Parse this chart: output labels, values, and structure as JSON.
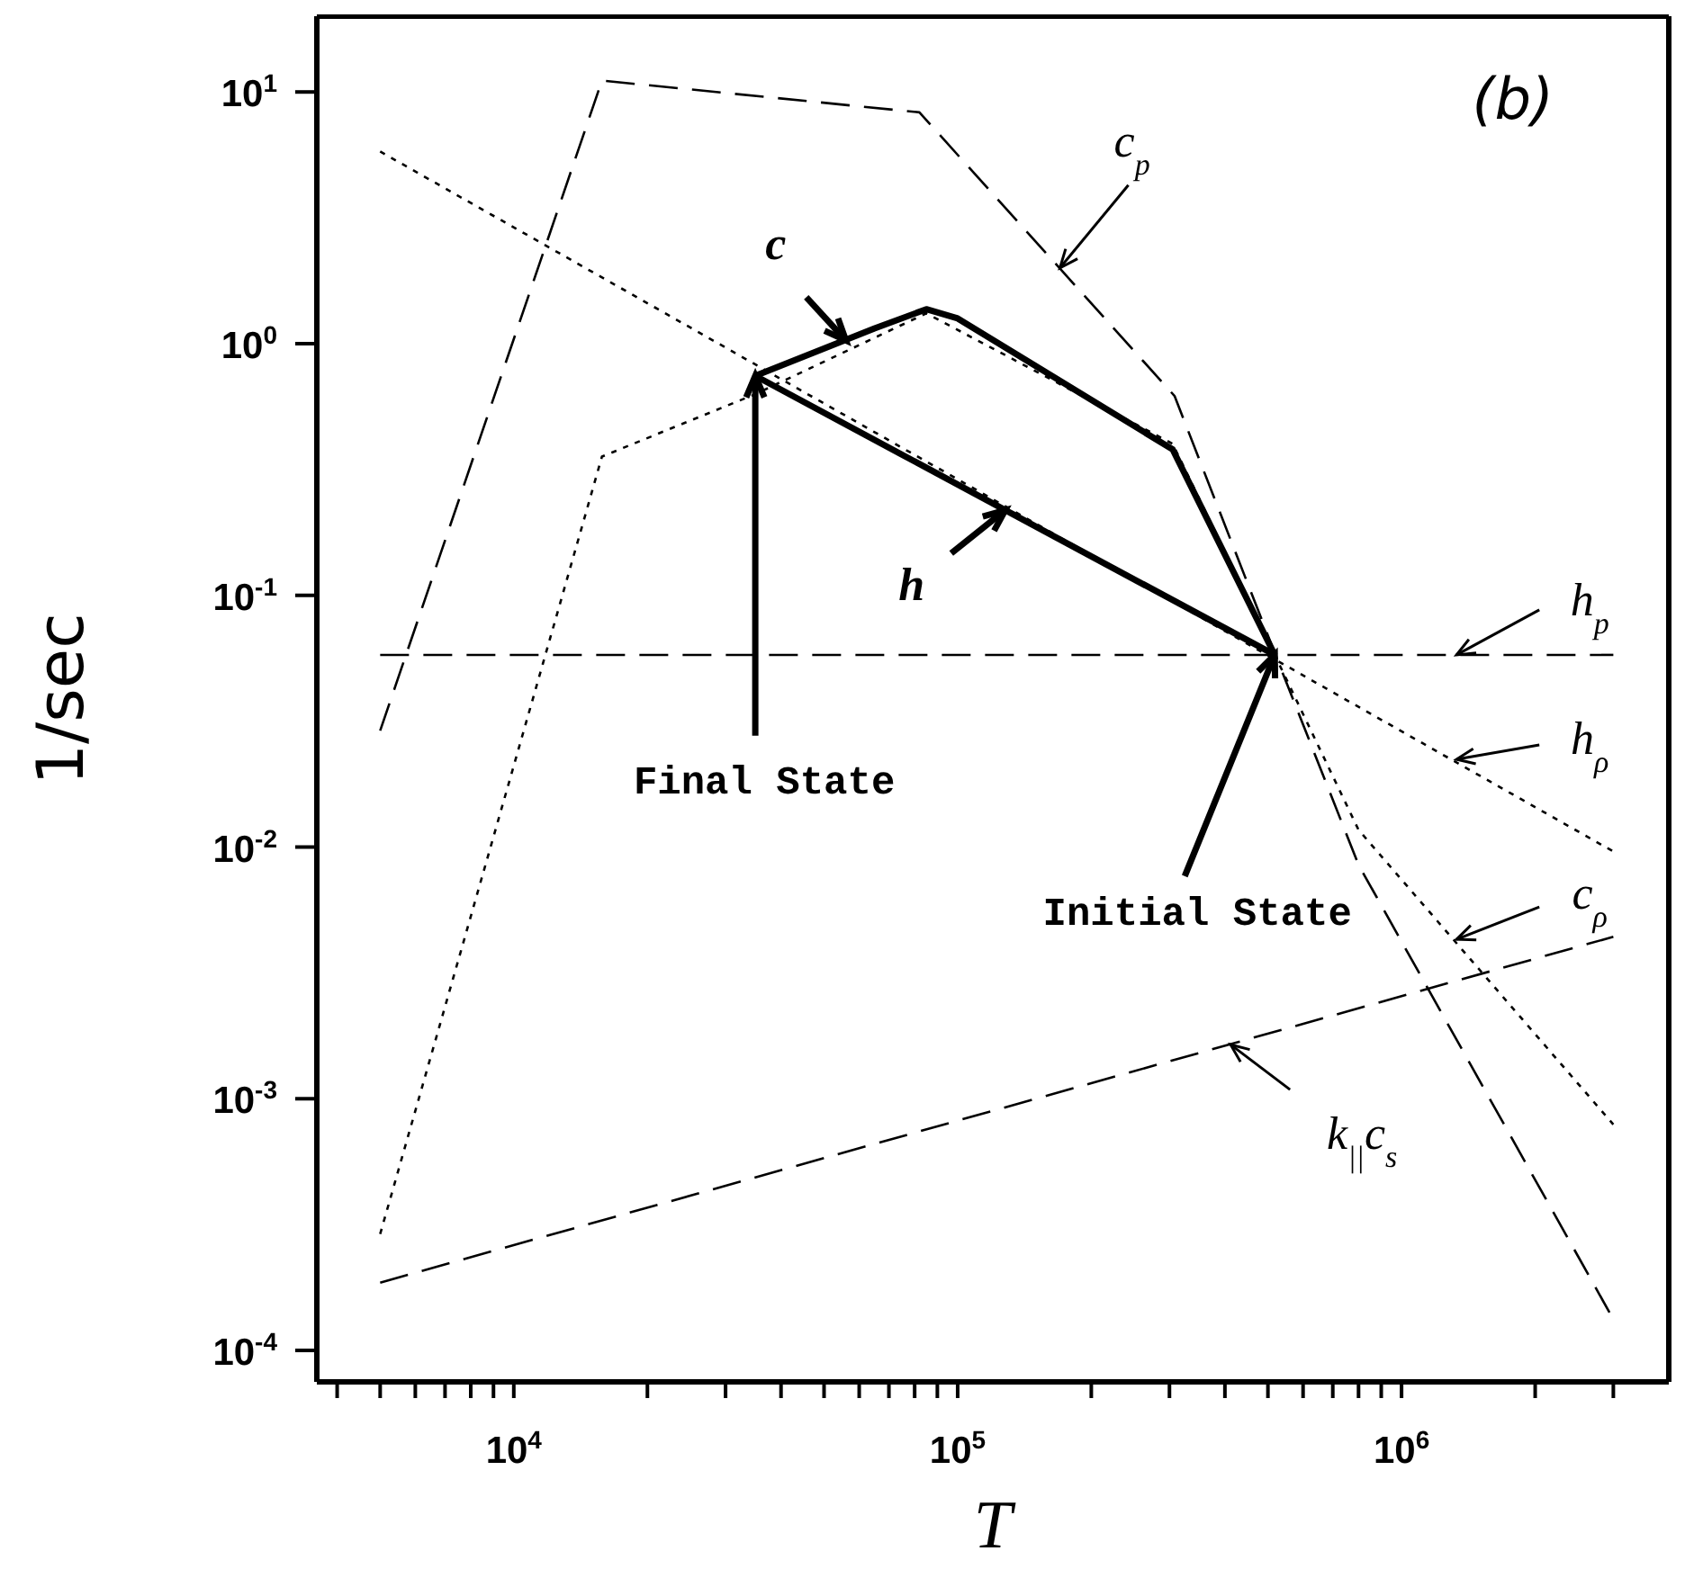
{
  "chart_data": {
    "type": "line",
    "xlabel": "T",
    "ylabel": "1/sec",
    "log": "xy",
    "grid": false,
    "marker": "none",
    "xlim": [
      3600,
      4000000
    ],
    "ylim": [
      7.5e-05,
      20
    ],
    "xticks": [
      {
        "value": 4000,
        "label": null
      },
      {
        "value": 5000,
        "label": null
      },
      {
        "value": 6000,
        "label": null
      },
      {
        "value": 7000,
        "label": null
      },
      {
        "value": 8000,
        "label": null
      },
      {
        "value": 9000,
        "label": null
      },
      {
        "value": 10000,
        "label": "10$^{4}$"
      },
      {
        "value": 20000,
        "label": null
      },
      {
        "value": 30000,
        "label": null
      },
      {
        "value": 40000,
        "label": null
      },
      {
        "value": 50000,
        "label": null
      },
      {
        "value": 60000,
        "label": null
      },
      {
        "value": 70000,
        "label": null
      },
      {
        "value": 80000,
        "label": null
      },
      {
        "value": 90000,
        "label": null
      },
      {
        "value": 100000,
        "label": "10$^{5}$"
      },
      {
        "value": 200000,
        "label": null
      },
      {
        "value": 300000,
        "label": null
      },
      {
        "value": 400000,
        "label": null
      },
      {
        "value": 500000,
        "label": null
      },
      {
        "value": 600000,
        "label": null
      },
      {
        "value": 700000,
        "label": null
      },
      {
        "value": 800000,
        "label": null
      },
      {
        "value": 900000,
        "label": null
      },
      {
        "value": 1000000,
        "label": "10$^{6}$"
      },
      {
        "value": 2000000,
        "label": null
      },
      {
        "value": 3000000,
        "label": null
      }
    ],
    "yticks": [
      {
        "value": 0.0001,
        "label": "10$^{-4}$"
      },
      {
        "value": 0.001,
        "label": "10$^{-3}$"
      },
      {
        "value": 0.01,
        "label": "10$^{-2}$"
      },
      {
        "value": 0.1,
        "label": "10$^{-1}$"
      },
      {
        "value": 1,
        "label": "10$^{0}$"
      },
      {
        "value": 10,
        "label": "10$^{1}$"
      }
    ],
    "series": [
      {
        "color": "#000000",
        "line_style": "dashed",
        "x": [
          5000,
          15800,
          82000,
          308000,
          520000,
          800000,
          3000000
        ],
        "values": [
          0.029,
          11.1,
          8.3,
          0.62,
          0.058,
          0.0085,
          0.000133
        ]
      },
      {
        "color": "#000000",
        "line_style": "dashed",
        "x": [
          5000,
          3000000
        ],
        "values": [
          0.058,
          0.058
        ]
      },
      {
        "color": "#000000",
        "line_style": "dotted",
        "x": [
          5000,
          3000000
        ],
        "values": [
          5.8,
          0.0096
        ]
      },
      {
        "color": "#000000",
        "line_style": "dotted",
        "x": [
          5000,
          15800,
          35000,
          85000,
          305000,
          518000,
          800000,
          3000000
        ],
        "values": [
          0.00029,
          0.356,
          0.63,
          1.32,
          0.4,
          0.058,
          0.0117,
          0.00079
        ]
      },
      {
        "color": "#000000",
        "line_style": "dashed",
        "x": [
          5000,
          3000000
        ],
        "values": [
          0.000186,
          0.0044
        ]
      },
      {
        "color": "#000000",
        "line_style": "solid",
        "x": [
          35000,
          65000,
          85000,
          100000,
          305000,
          518000
        ],
        "values": [
          0.745,
          1.15,
          1.37,
          1.26,
          0.38,
          0.058
        ]
      },
      {
        "color": "#000000",
        "line_style": "solid",
        "x": [
          35000,
          518000
        ],
        "values": [
          0.745,
          0.058
        ]
      }
    ],
    "annotations": [
      "(b)",
      {
        "text": "c$_{p}$",
        "x": 170000,
        "y": 2.0
      },
      {
        "text": "c",
        "x": 56000,
        "y": 1.03
      },
      {
        "text": "h",
        "x": 128000,
        "y": 0.218
      },
      {
        "text": "h$_{p}$",
        "x": 1330000,
        "y": 0.058
      },
      {
        "text": "h$_{ρ}$",
        "x": 1330000,
        "y": 0.0223
      },
      {
        "text": "c$_{ρ}$",
        "x": 1330000,
        "y": 0.0043
      },
      {
        "text": "k$_{||}$c$_{s}$",
        "x": 412000,
        "y": 0.00164
      },
      {
        "text": "Final State",
        "x": 35000,
        "y": 0.745
      },
      {
        "text": "Initial State",
        "x": 518000,
        "y": 0.058
      }
    ]
  }
}
